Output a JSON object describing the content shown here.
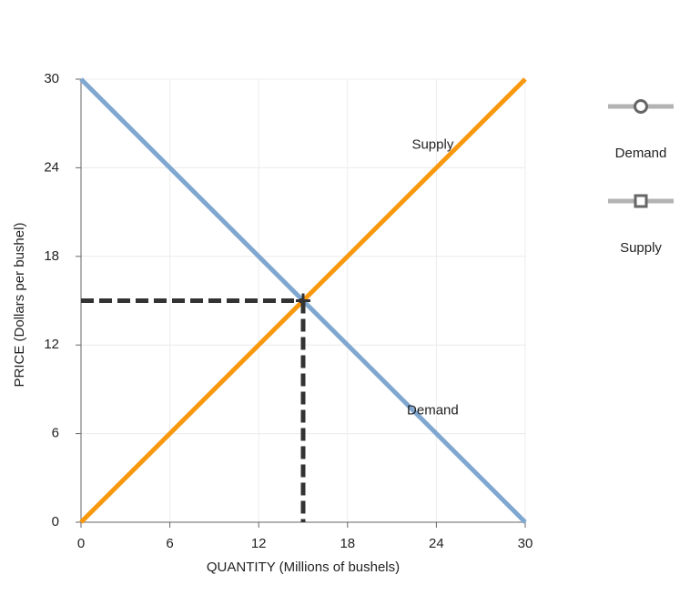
{
  "chart_data": {
    "type": "line",
    "x_label": "QUANTITY (Millions of bushels)",
    "y_label": "PRICE (Dollars per bushel)",
    "xlim": [
      0,
      30
    ],
    "ylim": [
      0,
      30
    ],
    "xticks": [
      0,
      6,
      12,
      18,
      24,
      30
    ],
    "yticks": [
      0,
      6,
      12,
      18,
      24,
      30
    ],
    "grid": true,
    "legend_color": "#b3b3b3",
    "series": [
      {
        "name": "Demand",
        "color": "#7fa7d0",
        "marker": "circle",
        "x": [
          0,
          30
        ],
        "values": [
          30,
          0
        ]
      },
      {
        "name": "Supply",
        "color": "#f7980f",
        "marker": "square",
        "x": [
          0,
          30
        ],
        "values": [
          0,
          30
        ]
      }
    ],
    "equilibrium": {
      "x": 15,
      "y": 15
    }
  }
}
